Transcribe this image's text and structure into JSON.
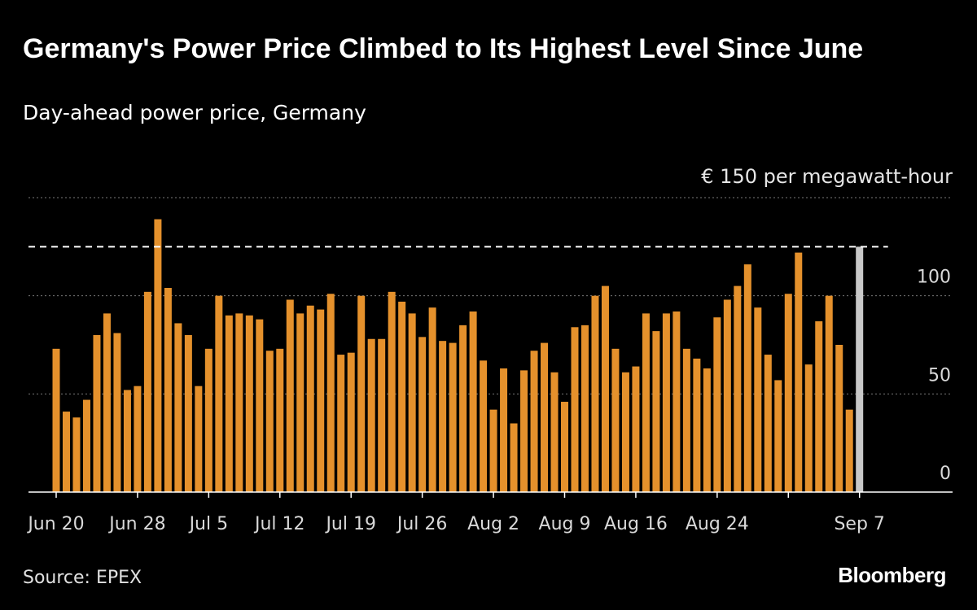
{
  "title": "Germany's Power Price Climbed to Its Highest Level Since June",
  "subtitle": "Day-ahead power price, Germany",
  "source": "Source: EPEX",
  "brand": "Bloomberg",
  "colors": {
    "bar": "#e5912c",
    "highlight": "#c8c8c8",
    "grid": "#7a7a7a",
    "axis": "#ffffff",
    "background": "#000000"
  },
  "chart_data": {
    "type": "bar",
    "title": "Germany's Power Price Climbed to Its Highest Level Since June",
    "subtitle": "Day-ahead power price, Germany",
    "unit_label": "€ 150 per megawatt-hour",
    "ylim": [
      0,
      150
    ],
    "yticks": [
      0,
      50,
      100
    ],
    "ytick_labels": [
      "0",
      "50",
      "100"
    ],
    "reference_line": 125,
    "x_labels": [
      "Jun 20",
      "Jun 28",
      "Jul 5",
      "Jul 12",
      "Jul 19",
      "Jul 26",
      "Aug 2",
      "Aug 9",
      "Aug 16",
      "Aug 24",
      "Sep 7"
    ],
    "x_label_indices": [
      0,
      8,
      15,
      22,
      29,
      36,
      43,
      50,
      57,
      65,
      79
    ],
    "x_tick_indices": [
      0,
      8,
      15,
      22,
      29,
      36,
      43,
      50,
      57,
      65,
      72,
      79
    ],
    "highlight_index": 79,
    "values": [
      73,
      41,
      38,
      47,
      80,
      91,
      81,
      52,
      54,
      102,
      139,
      104,
      86,
      80,
      54,
      73,
      100,
      90,
      91,
      90,
      88,
      72,
      73,
      98,
      91,
      95,
      93,
      101,
      70,
      71,
      100,
      78,
      78,
      102,
      97,
      91,
      79,
      94,
      77,
      76,
      85,
      92,
      67,
      42,
      63,
      35,
      62,
      72,
      76,
      61,
      46,
      84,
      85,
      100,
      105,
      73,
      61,
      64,
      91,
      82,
      91,
      92,
      73,
      68,
      63,
      89,
      98,
      105,
      116,
      94,
      70,
      57,
      101,
      122,
      65,
      87,
      100,
      75,
      42,
      125
    ]
  }
}
